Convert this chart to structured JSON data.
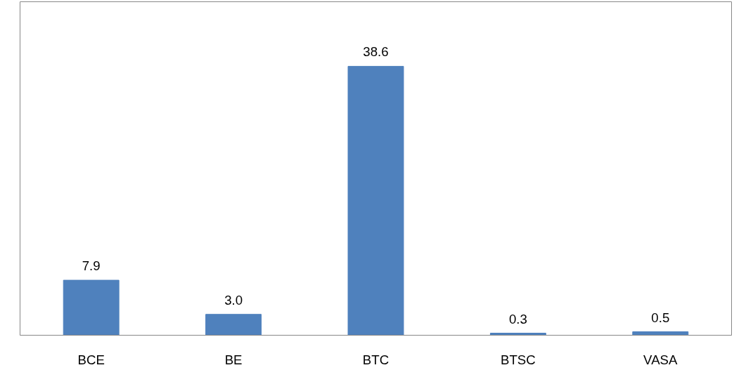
{
  "chart_data": {
    "type": "bar",
    "categories": [
      "BCE",
      "BE",
      "BTC",
      "BTSC",
      "VASA"
    ],
    "values": [
      7.9,
      3.0,
      38.6,
      0.3,
      0.5
    ],
    "value_labels": [
      "7.9",
      "3.0",
      "38.6",
      "0.3",
      "0.5"
    ],
    "color": "#4f81bd",
    "grid": false
  }
}
